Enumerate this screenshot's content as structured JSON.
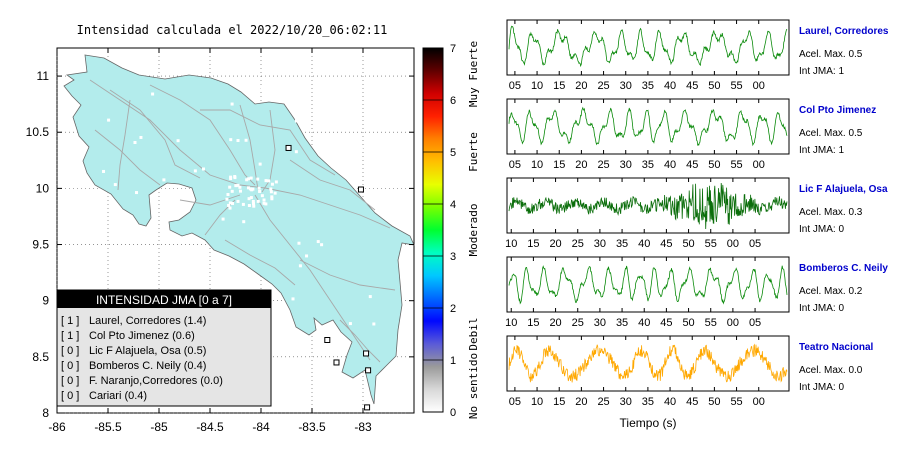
{
  "chart_data": [
    {
      "type": "map",
      "title": "Intensidad calculada el 2022/10/20_06:02:11",
      "xlim": [
        -86,
        -82.5
      ],
      "ylim": [
        8,
        11.25
      ],
      "x_ticks": [
        -86,
        -85.5,
        -85,
        -84.5,
        -84,
        -83.5,
        -83
      ],
      "x_tick_labels": [
        "-86",
        "-85.5",
        "-85",
        "-84.5",
        "-84",
        "-83.5",
        "-83"
      ],
      "y_ticks": [
        8,
        8.5,
        9,
        9.5,
        10,
        10.5,
        11
      ],
      "y_tick_labels": [
        "8",
        "8.5",
        "9",
        "9.5",
        "10",
        "10.5",
        "11"
      ],
      "stations": [
        {
          "lon": -83.73,
          "lat": 10.36
        },
        {
          "lon": -83.02,
          "lat": 9.99
        },
        {
          "lon": -82.97,
          "lat": 8.53
        },
        {
          "lon": -83.35,
          "lat": 8.65
        },
        {
          "lon": -83.26,
          "lat": 8.45
        },
        {
          "lon": -82.95,
          "lat": 8.38
        },
        {
          "lon": -82.96,
          "lat": 8.05
        }
      ],
      "legend": {
        "title": "INTENSIDAD JMA [0 a 7]",
        "entries": [
          {
            "code": "[ 1 ]",
            "label": "Laurel, Corredores (1.4)"
          },
          {
            "code": "[ 1 ]",
            "label": "Col Pto Jimenez (0.6)"
          },
          {
            "code": "[ 0 ]",
            "label": "Lic F Alajuela, Osa (0.5)"
          },
          {
            "code": "[ 0 ]",
            "label": "Bomberos C. Neily (0.4)"
          },
          {
            "code": "[ 0 ]",
            "label": "F. Naranjo,Corredores (0.0)"
          },
          {
            "code": "[ 0 ]",
            "label": "Cariari (0.4)"
          }
        ]
      }
    },
    {
      "type": "colorbar",
      "range": [
        0,
        7
      ],
      "ticks": [
        "0",
        "1",
        "2",
        "3",
        "4",
        "5",
        "6",
        "7"
      ],
      "category_labels": [
        "No sentido",
        "Debil",
        "Moderado",
        "Fuerte",
        "Muy Fuerte"
      ],
      "colors": [
        "#ffffff",
        "#d8d8d8",
        "#9a9a9a",
        "#5a5ad8",
        "#0008ff",
        "#0068ff",
        "#00c8ff",
        "#00ffc0",
        "#00ff30",
        "#78ff00",
        "#e8ff00",
        "#ffc000",
        "#ff8000",
        "#ff2000",
        "#d00000",
        "#600000",
        "#000000"
      ]
    },
    {
      "type": "line",
      "xlabel": "Tiempo (s)",
      "series": [
        {
          "name": "Laurel, Corredores",
          "acel": "Acel. Max. 0.5",
          "int": "Int JMA: 1",
          "color": "#0a8a0a",
          "ticks": [
            "05",
            "10",
            "15",
            "20",
            "25",
            "30",
            "35",
            "40",
            "45",
            "50",
            "55",
            "00"
          ]
        },
        {
          "name": "Col Pto Jimenez",
          "acel": "Acel. Max. 0.5",
          "int": "Int JMA: 1",
          "color": "#0a8a0a",
          "ticks": [
            "05",
            "10",
            "15",
            "20",
            "25",
            "30",
            "35",
            "40",
            "45",
            "50",
            "55",
            "00"
          ]
        },
        {
          "name": "Lic F Alajuela, Osa",
          "acel": "Acel. Max. 0.3",
          "int": "Int JMA: 0",
          "color": "#0b6e0b",
          "ticks": [
            "10",
            "15",
            "20",
            "25",
            "30",
            "35",
            "40",
            "45",
            "50",
            "55",
            "00",
            "05"
          ]
        },
        {
          "name": "Bomberos C. Neily",
          "acel": "Acel. Max. 0.2",
          "int": "Int JMA: 0",
          "color": "#0a8a0a",
          "ticks": [
            "10",
            "15",
            "20",
            "25",
            "30",
            "35",
            "40",
            "45",
            "50",
            "55",
            "00",
            "05"
          ]
        },
        {
          "name": "Teatro Nacional",
          "acel": "Acel. Max. 0.0",
          "int": "Int JMA: 0",
          "color": "#ffa800",
          "ticks": [
            "05",
            "10",
            "15",
            "20",
            "25",
            "30",
            "35",
            "40",
            "45",
            "50",
            "55",
            "00"
          ]
        }
      ]
    }
  ]
}
